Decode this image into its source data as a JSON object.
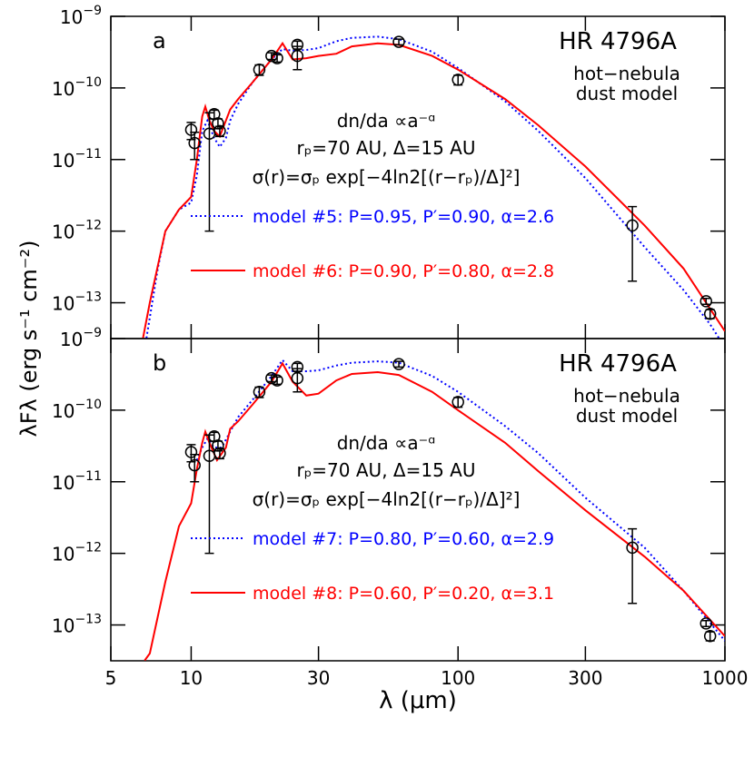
{
  "chart_data": [
    {
      "type": "line",
      "panel": "a",
      "xlog": true,
      "ylog": true,
      "xlim": [
        5,
        1000
      ],
      "ylim": [
        3.16e-14,
        1e-09
      ],
      "ylabel": "λFλ  (erg s⁻¹ cm⁻²)",
      "yticks": [
        {
          "value": 1e-09,
          "label": "10",
          "exponent": "−9"
        },
        {
          "value": 1e-10,
          "label": "10",
          "exponent": "−10"
        },
        {
          "value": 1e-11,
          "label": "10",
          "exponent": "−11"
        },
        {
          "value": 1e-12,
          "label": "10",
          "exponent": "−12"
        },
        {
          "value": 1e-13,
          "label": "10",
          "exponent": "−13"
        }
      ],
      "annotations": [
        "HR 4796A",
        "hot−nebula",
        "dust model",
        "dn/da ∝a⁻ᵅ",
        "rₚ=70 AU, Δ=15 AU",
        "σ(r)=σₚ exp[−4ln2[(r−rₚ)/Δ]²]"
      ],
      "series": [
        {
          "name": "model #5: P=0.95, P′=0.90, α=2.6",
          "color": "#0000ff",
          "style": "dotted",
          "x": [
            6.8,
            7.5,
            8,
            9,
            10,
            10.5,
            11,
            11.5,
            12.2,
            12.8,
            13.5,
            14,
            15,
            17,
            20,
            22,
            24,
            27,
            30,
            35,
            40,
            50,
            60,
            80,
            100,
            150,
            200,
            300,
            500,
            700,
            880,
            950
          ],
          "values": [
            3.2e-14,
            3e-13,
            1e-12,
            2e-12,
            2.5e-12,
            6e-12,
            2.5e-11,
            3.5e-11,
            2e-11,
            1.5e-11,
            2e-11,
            3.5e-11,
            6e-11,
            1.2e-10,
            2.5e-10,
            3.5e-10,
            3.3e-10,
            3.4e-10,
            3.6e-10,
            4.5e-10,
            5e-10,
            5.2e-10,
            4.8e-10,
            3.2e-10,
            1.9e-10,
            6.5e-11,
            2.5e-11,
            5.5e-12,
            6e-13,
            1.5e-13,
            5e-14,
            3.2e-14
          ]
        },
        {
          "name": "model #6: P=0.90, P′=0.80, α=2.8",
          "color": "#ff0000",
          "style": "solid",
          "x": [
            6.6,
            7,
            8,
            9,
            10,
            10.5,
            11,
            11.3,
            11.7,
            12.2,
            12.8,
            13.5,
            14,
            15,
            17,
            20,
            22,
            24,
            27,
            30,
            35,
            40,
            50,
            60,
            80,
            100,
            150,
            200,
            300,
            500,
            700,
            1000
          ],
          "values": [
            3.2e-14,
            1e-13,
            1e-12,
            2e-12,
            3e-12,
            1e-11,
            4e-11,
            5.5e-11,
            3.5e-11,
            2.5e-11,
            2.1e-11,
            3.5e-11,
            5e-11,
            7e-11,
            1.2e-10,
            2.5e-10,
            4.2e-10,
            2.5e-10,
            2.6e-10,
            2.8e-10,
            3e-10,
            3.8e-10,
            4.2e-10,
            4e-10,
            2.8e-10,
            1.8e-10,
            7e-11,
            3e-11,
            8e-12,
            1.2e-12,
            3e-13,
            4e-14
          ]
        }
      ],
      "observations": {
        "x": [
          10,
          10.3,
          11.7,
          12.2,
          12.6,
          12.8,
          18,
          20,
          21,
          25,
          25,
          60,
          100,
          450,
          850,
          880
        ],
        "values": [
          2.6e-11,
          1.7e-11,
          2.3e-11,
          4.3e-11,
          3.2e-11,
          2.5e-11,
          1.8e-10,
          2.8e-10,
          2.6e-10,
          2.8e-10,
          4e-10,
          4.4e-10,
          1.3e-10,
          1.2e-12,
          1.05e-13,
          7e-14
        ],
        "errors": [
          7e-12,
          7e-12,
          2.2e-11,
          6e-12,
          5e-12,
          4e-12,
          3e-11,
          3e-11,
          3e-11,
          1e-10,
          5e-11,
          4e-11,
          2e-11,
          1e-12,
          1e-14,
          1e-14
        ]
      }
    },
    {
      "type": "line",
      "panel": "b",
      "xlog": true,
      "ylog": true,
      "xlim": [
        5,
        1000
      ],
      "ylim": [
        3.16e-14,
        1e-09
      ],
      "xlabel": "λ  (μm)",
      "xticks": [
        5,
        10,
        30,
        100,
        300,
        1000
      ],
      "yticks": [
        {
          "value": 1e-09,
          "label": "10",
          "exponent": "−9"
        },
        {
          "value": 1e-10,
          "label": "10",
          "exponent": "−10"
        },
        {
          "value": 1e-11,
          "label": "10",
          "exponent": "−11"
        },
        {
          "value": 1e-12,
          "label": "10",
          "exponent": "−12"
        },
        {
          "value": 1e-13,
          "label": "10",
          "exponent": "−13"
        }
      ],
      "annotations": [
        "HR 4796A",
        "hot−nebula",
        "dust model",
        "dn/da ∝a⁻ᵅ",
        "rₚ=70 AU, Δ=15 AU",
        "σ(r)=σₚ exp[−4ln2[(r−rₚ)/Δ]²]"
      ],
      "series": [
        {
          "name": "model #7: P=0.80, P′=0.60, α=2.9",
          "color": "#0000ff",
          "style": "dotted",
          "x": [
            10.5,
            11,
            11.5,
            12.2,
            13,
            14,
            15,
            17,
            20,
            22,
            24,
            27,
            30,
            35,
            40,
            50,
            60,
            80,
            100,
            150,
            200,
            300,
            500,
            700,
            1000
          ],
          "values": [
            2e-11,
            3e-11,
            4e-11,
            3e-11,
            3e-11,
            5e-11,
            8e-11,
            1.4e-10,
            3e-10,
            5e-10,
            3.5e-10,
            3.5e-10,
            3.6e-10,
            4.2e-10,
            4.6e-10,
            4.8e-10,
            4.6e-10,
            3e-10,
            1.8e-10,
            6e-11,
            2.5e-11,
            6e-12,
            1.2e-12,
            3e-13,
            6e-14
          ]
        },
        {
          "name": "model #8: P=0.60, P′=0.20, α=3.1",
          "color": "#ff0000",
          "style": "solid",
          "x": [
            6.7,
            7,
            8,
            9,
            10,
            10.5,
            11,
            11.3,
            11.7,
            12.5,
            13.5,
            14,
            15,
            17,
            20,
            22,
            24,
            27,
            30,
            35,
            40,
            50,
            60,
            80,
            100,
            150,
            200,
            300,
            500,
            700,
            1000
          ],
          "values": [
            3.2e-14,
            4e-14,
            4e-13,
            2.4e-12,
            5e-12,
            1.5e-11,
            3.5e-11,
            5e-11,
            3.5e-11,
            2e-11,
            3e-11,
            5.5e-11,
            7e-11,
            1.2e-10,
            2.5e-10,
            4.5e-10,
            2.5e-10,
            1.6e-10,
            1.7e-10,
            2.6e-10,
            3.2e-10,
            3.4e-10,
            3.1e-10,
            1.8e-10,
            1e-10,
            3.5e-11,
            1.4e-11,
            4e-12,
            9e-13,
            3e-13,
            7e-14
          ]
        }
      ],
      "observations": {
        "x": [
          10,
          10.3,
          11.7,
          12.2,
          12.6,
          12.8,
          18,
          20,
          21,
          25,
          25,
          60,
          100,
          450,
          850,
          880
        ],
        "values": [
          2.6e-11,
          1.7e-11,
          2.3e-11,
          4.3e-11,
          3.2e-11,
          2.5e-11,
          1.8e-10,
          2.8e-10,
          2.6e-10,
          2.8e-10,
          4e-10,
          4.4e-10,
          1.3e-10,
          1.2e-12,
          1.05e-13,
          7e-14
        ],
        "errors": [
          7e-12,
          7e-12,
          2.2e-11,
          6e-12,
          5e-12,
          4e-12,
          3e-11,
          3e-11,
          3e-11,
          1e-10,
          5e-11,
          4e-11,
          2e-11,
          1e-12,
          1e-14,
          1e-14
        ]
      }
    }
  ]
}
